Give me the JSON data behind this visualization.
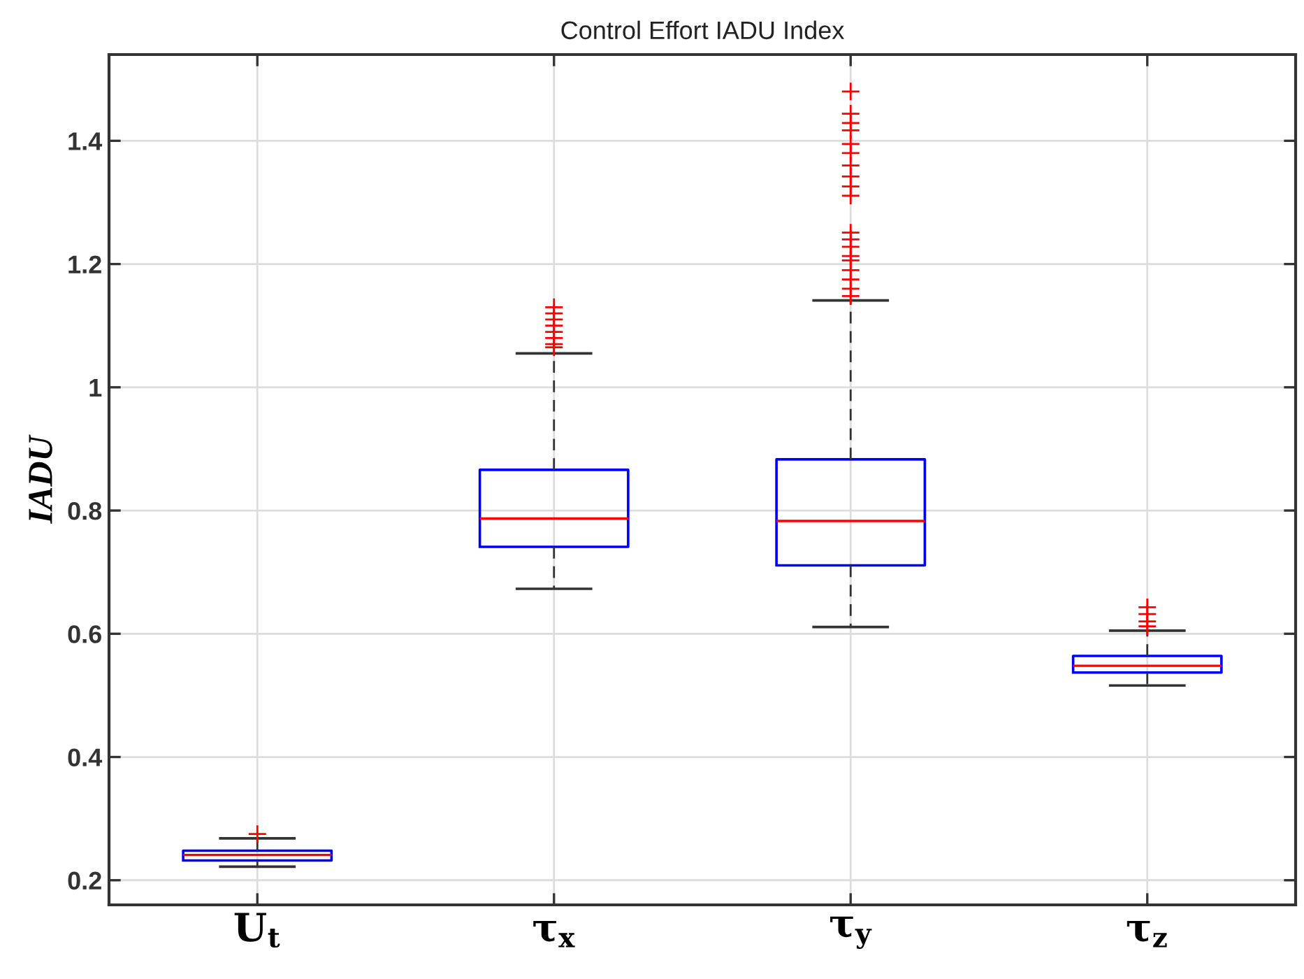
{
  "chart_data": {
    "type": "box",
    "title": "Control Effort IADU Index",
    "ylabel": "IADU",
    "categories": [
      "U$_{t}$",
      "τ$_{x}$",
      "τ$_{y}$",
      "τ$_{z}$"
    ],
    "boxes": [
      {
        "low": 0.222,
        "q1": 0.232,
        "median": 0.241,
        "q3": 0.248,
        "high": 0.268,
        "outliers": [
          0.275
        ]
      },
      {
        "low": 0.673,
        "q1": 0.741,
        "median": 0.787,
        "q3": 0.866,
        "high": 1.055,
        "outliers": [
          1.065,
          1.07,
          1.08,
          1.09,
          1.1,
          1.11,
          1.12,
          1.13
        ]
      },
      {
        "low": 0.611,
        "q1": 0.711,
        "median": 0.783,
        "q3": 0.883,
        "high": 1.141,
        "outliers": [
          1.148,
          1.16,
          1.175,
          1.19,
          1.206,
          1.213,
          1.228,
          1.24,
          1.251,
          1.311,
          1.326,
          1.342,
          1.36,
          1.38,
          1.395,
          1.417,
          1.429,
          1.444,
          1.48
        ]
      },
      {
        "low": 0.516,
        "q1": 0.537,
        "median": 0.548,
        "q3": 0.564,
        "high": 0.605,
        "outliers": [
          0.612,
          0.62,
          0.632,
          0.643
        ]
      }
    ],
    "color": "#0000ff",
    "ylim": [
      0.16,
      1.54
    ],
    "yticks": [
      0.2,
      0.4,
      0.6,
      0.8,
      1,
      1.2,
      1.4
    ],
    "grid": true
  }
}
